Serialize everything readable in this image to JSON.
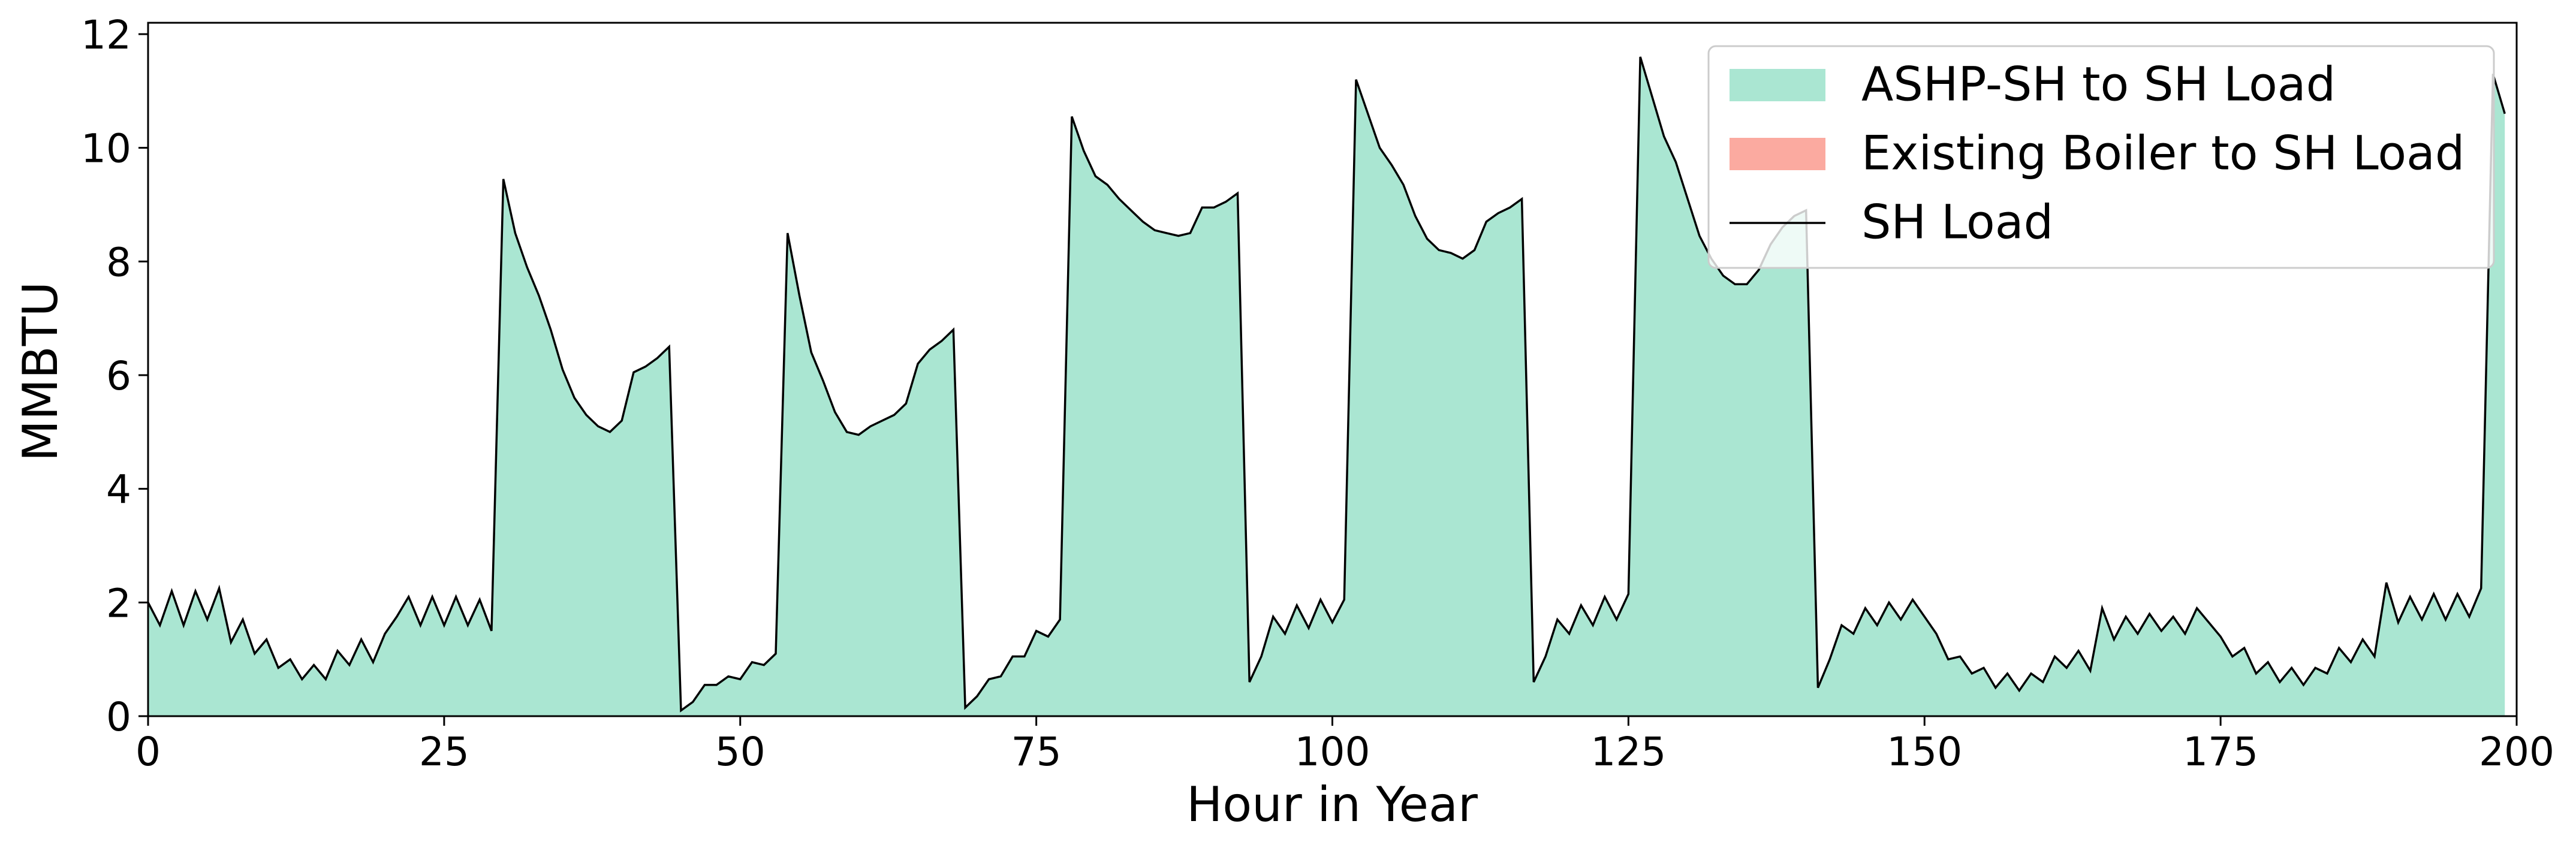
{
  "chart_data": {
    "type": "stacked_area",
    "xlabel": "Hour in Year",
    "ylabel": "MMBTU",
    "xlim": [
      0,
      200
    ],
    "ylim": [
      0,
      12.2
    ],
    "xticks": [
      0,
      25,
      50,
      75,
      100,
      125,
      150,
      175,
      200
    ],
    "yticks": [
      0,
      2,
      4,
      6,
      8,
      10,
      12
    ],
    "grid": false,
    "legend": "upper right",
    "x": [
      0,
      1,
      2,
      3,
      4,
      5,
      6,
      7,
      8,
      9,
      10,
      11,
      12,
      13,
      14,
      15,
      16,
      17,
      18,
      19,
      20,
      21,
      22,
      23,
      24,
      25,
      26,
      27,
      28,
      29,
      30,
      31,
      32,
      33,
      34,
      35,
      36,
      37,
      38,
      39,
      40,
      41,
      42,
      43,
      44,
      45,
      46,
      47,
      48,
      49,
      50,
      51,
      52,
      53,
      54,
      55,
      56,
      57,
      58,
      59,
      60,
      61,
      62,
      63,
      64,
      65,
      66,
      67,
      68,
      69,
      70,
      71,
      72,
      73,
      74,
      75,
      76,
      77,
      78,
      79,
      80,
      81,
      82,
      83,
      84,
      85,
      86,
      87,
      88,
      89,
      90,
      91,
      92,
      93,
      94,
      95,
      96,
      97,
      98,
      99,
      100,
      101,
      102,
      103,
      104,
      105,
      106,
      107,
      108,
      109,
      110,
      111,
      112,
      113,
      114,
      115,
      116,
      117,
      118,
      119,
      120,
      121,
      122,
      123,
      124,
      125,
      126,
      127,
      128,
      129,
      130,
      131,
      132,
      133,
      134,
      135,
      136,
      137,
      138,
      139,
      140,
      141,
      142,
      143,
      144,
      145,
      146,
      147,
      148,
      149,
      150,
      151,
      152,
      153,
      154,
      155,
      156,
      157,
      158,
      159,
      160,
      161,
      162,
      163,
      164,
      165,
      166,
      167,
      168,
      169,
      170,
      171,
      172,
      173,
      174,
      175,
      176,
      177,
      178,
      179,
      180,
      181,
      182,
      183,
      184,
      185,
      186,
      187,
      188,
      189,
      190,
      191,
      192,
      193,
      194,
      195,
      196,
      197,
      198,
      199
    ],
    "series": [
      {
        "name": "ASHP-SH to SH Load",
        "kind": "area",
        "color": "#aae6d2",
        "values": [
          2.0,
          1.6,
          2.2,
          1.6,
          2.2,
          1.7,
          2.25,
          1.3,
          1.7,
          1.1,
          1.35,
          0.85,
          1.0,
          0.65,
          0.9,
          0.65,
          1.15,
          0.9,
          1.35,
          0.95,
          1.45,
          1.75,
          2.1,
          1.6,
          2.1,
          1.6,
          2.1,
          1.6,
          2.05,
          1.5,
          9.45,
          8.5,
          7.9,
          7.4,
          6.8,
          6.1,
          5.6,
          5.3,
          5.1,
          5.0,
          5.2,
          6.05,
          6.15,
          6.3,
          6.5,
          0.1,
          0.25,
          0.55,
          0.55,
          0.7,
          0.65,
          0.95,
          0.9,
          1.1,
          8.5,
          7.4,
          6.4,
          5.9,
          5.35,
          5.0,
          4.95,
          5.1,
          5.2,
          5.3,
          5.5,
          6.2,
          6.45,
          6.6,
          6.8,
          0.15,
          0.35,
          0.65,
          0.7,
          1.05,
          1.05,
          1.5,
          1.4,
          1.7,
          10.55,
          9.95,
          9.5,
          9.35,
          9.1,
          8.9,
          8.7,
          8.55,
          8.5,
          8.45,
          8.5,
          8.95,
          8.95,
          9.05,
          9.2,
          0.6,
          1.05,
          1.75,
          1.45,
          1.95,
          1.55,
          2.05,
          1.65,
          2.05,
          11.2,
          10.6,
          10.0,
          9.7,
          9.35,
          8.8,
          8.4,
          8.2,
          8.15,
          8.05,
          8.2,
          8.7,
          8.85,
          8.95,
          9.1,
          0.6,
          1.05,
          1.7,
          1.45,
          1.95,
          1.6,
          2.1,
          1.7,
          2.15,
          11.6,
          10.9,
          10.2,
          9.75,
          9.1,
          8.45,
          8.05,
          7.75,
          7.6,
          7.6,
          7.85,
          8.3,
          8.6,
          8.8,
          8.9,
          0.5,
          1.0,
          1.6,
          1.45,
          1.9,
          1.6,
          2.0,
          1.7,
          2.05,
          1.75,
          1.45,
          1.0,
          1.05,
          0.75,
          0.85,
          0.5,
          0.75,
          0.45,
          0.75,
          0.6,
          1.05,
          0.85,
          1.15,
          0.8,
          1.9,
          1.35,
          1.75,
          1.45,
          1.8,
          1.5,
          1.75,
          1.45,
          1.9,
          1.65,
          1.4,
          1.05,
          1.2,
          0.75,
          0.95,
          0.6,
          0.85,
          0.55,
          0.85,
          0.75,
          1.2,
          0.95,
          1.35,
          1.05,
          2.35,
          1.65,
          2.1,
          1.7,
          2.15,
          1.7,
          2.15,
          1.75,
          2.25,
          11.3,
          10.6
        ]
      },
      {
        "name": "Existing Boiler to SH Load",
        "kind": "area",
        "color": "#fbaaa0",
        "values": [
          0,
          0,
          0,
          0,
          0,
          0,
          0,
          0,
          0,
          0,
          0,
          0,
          0,
          0,
          0,
          0,
          0,
          0,
          0,
          0,
          0,
          0,
          0,
          0,
          0,
          0,
          0,
          0,
          0,
          0,
          0,
          0,
          0,
          0,
          0,
          0,
          0,
          0,
          0,
          0,
          0,
          0,
          0,
          0,
          0,
          0,
          0,
          0,
          0,
          0,
          0,
          0,
          0,
          0,
          0,
          0,
          0,
          0,
          0,
          0,
          0,
          0,
          0,
          0,
          0,
          0,
          0,
          0,
          0,
          0,
          0,
          0,
          0,
          0,
          0,
          0,
          0,
          0,
          0,
          0,
          0,
          0,
          0,
          0,
          0,
          0,
          0,
          0,
          0,
          0,
          0,
          0,
          0,
          0,
          0,
          0,
          0,
          0,
          0,
          0,
          0,
          0,
          0,
          0,
          0,
          0,
          0,
          0,
          0,
          0,
          0,
          0,
          0,
          0,
          0,
          0,
          0,
          0,
          0,
          0,
          0,
          0,
          0,
          0,
          0,
          0,
          0,
          0,
          0,
          0,
          0,
          0,
          0,
          0,
          0,
          0,
          0,
          0,
          0,
          0,
          0,
          0,
          0,
          0,
          0,
          0,
          0,
          0,
          0,
          0,
          0,
          0,
          0,
          0,
          0,
          0,
          0,
          0,
          0,
          0,
          0,
          0,
          0,
          0,
          0,
          0,
          0,
          0,
          0,
          0,
          0,
          0,
          0,
          0,
          0,
          0,
          0,
          0,
          0,
          0,
          0,
          0,
          0,
          0,
          0,
          0,
          0,
          0,
          0,
          0,
          0,
          0,
          0,
          0,
          0,
          0,
          0,
          0,
          0,
          0
        ]
      },
      {
        "name": "SH Load",
        "kind": "line",
        "color": "#000000",
        "values": [
          2.0,
          1.6,
          2.2,
          1.6,
          2.2,
          1.7,
          2.25,
          1.3,
          1.7,
          1.1,
          1.35,
          0.85,
          1.0,
          0.65,
          0.9,
          0.65,
          1.15,
          0.9,
          1.35,
          0.95,
          1.45,
          1.75,
          2.1,
          1.6,
          2.1,
          1.6,
          2.1,
          1.6,
          2.05,
          1.5,
          9.45,
          8.5,
          7.9,
          7.4,
          6.8,
          6.1,
          5.6,
          5.3,
          5.1,
          5.0,
          5.2,
          6.05,
          6.15,
          6.3,
          6.5,
          0.1,
          0.25,
          0.55,
          0.55,
          0.7,
          0.65,
          0.95,
          0.9,
          1.1,
          8.5,
          7.4,
          6.4,
          5.9,
          5.35,
          5.0,
          4.95,
          5.1,
          5.2,
          5.3,
          5.5,
          6.2,
          6.45,
          6.6,
          6.8,
          0.15,
          0.35,
          0.65,
          0.7,
          1.05,
          1.05,
          1.5,
          1.4,
          1.7,
          10.55,
          9.95,
          9.5,
          9.35,
          9.1,
          8.9,
          8.7,
          8.55,
          8.5,
          8.45,
          8.5,
          8.95,
          8.95,
          9.05,
          9.2,
          0.6,
          1.05,
          1.75,
          1.45,
          1.95,
          1.55,
          2.05,
          1.65,
          2.05,
          11.2,
          10.6,
          10.0,
          9.7,
          9.35,
          8.8,
          8.4,
          8.2,
          8.15,
          8.05,
          8.2,
          8.7,
          8.85,
          8.95,
          9.1,
          0.6,
          1.05,
          1.7,
          1.45,
          1.95,
          1.6,
          2.1,
          1.7,
          2.15,
          11.6,
          10.9,
          10.2,
          9.75,
          9.1,
          8.45,
          8.05,
          7.75,
          7.6,
          7.6,
          7.85,
          8.3,
          8.6,
          8.8,
          8.9,
          0.5,
          1.0,
          1.6,
          1.45,
          1.9,
          1.6,
          2.0,
          1.7,
          2.05,
          1.75,
          1.45,
          1.0,
          1.05,
          0.75,
          0.85,
          0.5,
          0.75,
          0.45,
          0.75,
          0.6,
          1.05,
          0.85,
          1.15,
          0.8,
          1.9,
          1.35,
          1.75,
          1.45,
          1.8,
          1.5,
          1.75,
          1.45,
          1.9,
          1.65,
          1.4,
          1.05,
          1.2,
          0.75,
          0.95,
          0.6,
          0.85,
          0.55,
          0.85,
          0.75,
          1.2,
          0.95,
          1.35,
          1.05,
          2.35,
          1.65,
          2.1,
          1.7,
          2.15,
          1.7,
          2.15,
          1.75,
          2.25,
          11.3,
          10.6
        ]
      }
    ]
  }
}
